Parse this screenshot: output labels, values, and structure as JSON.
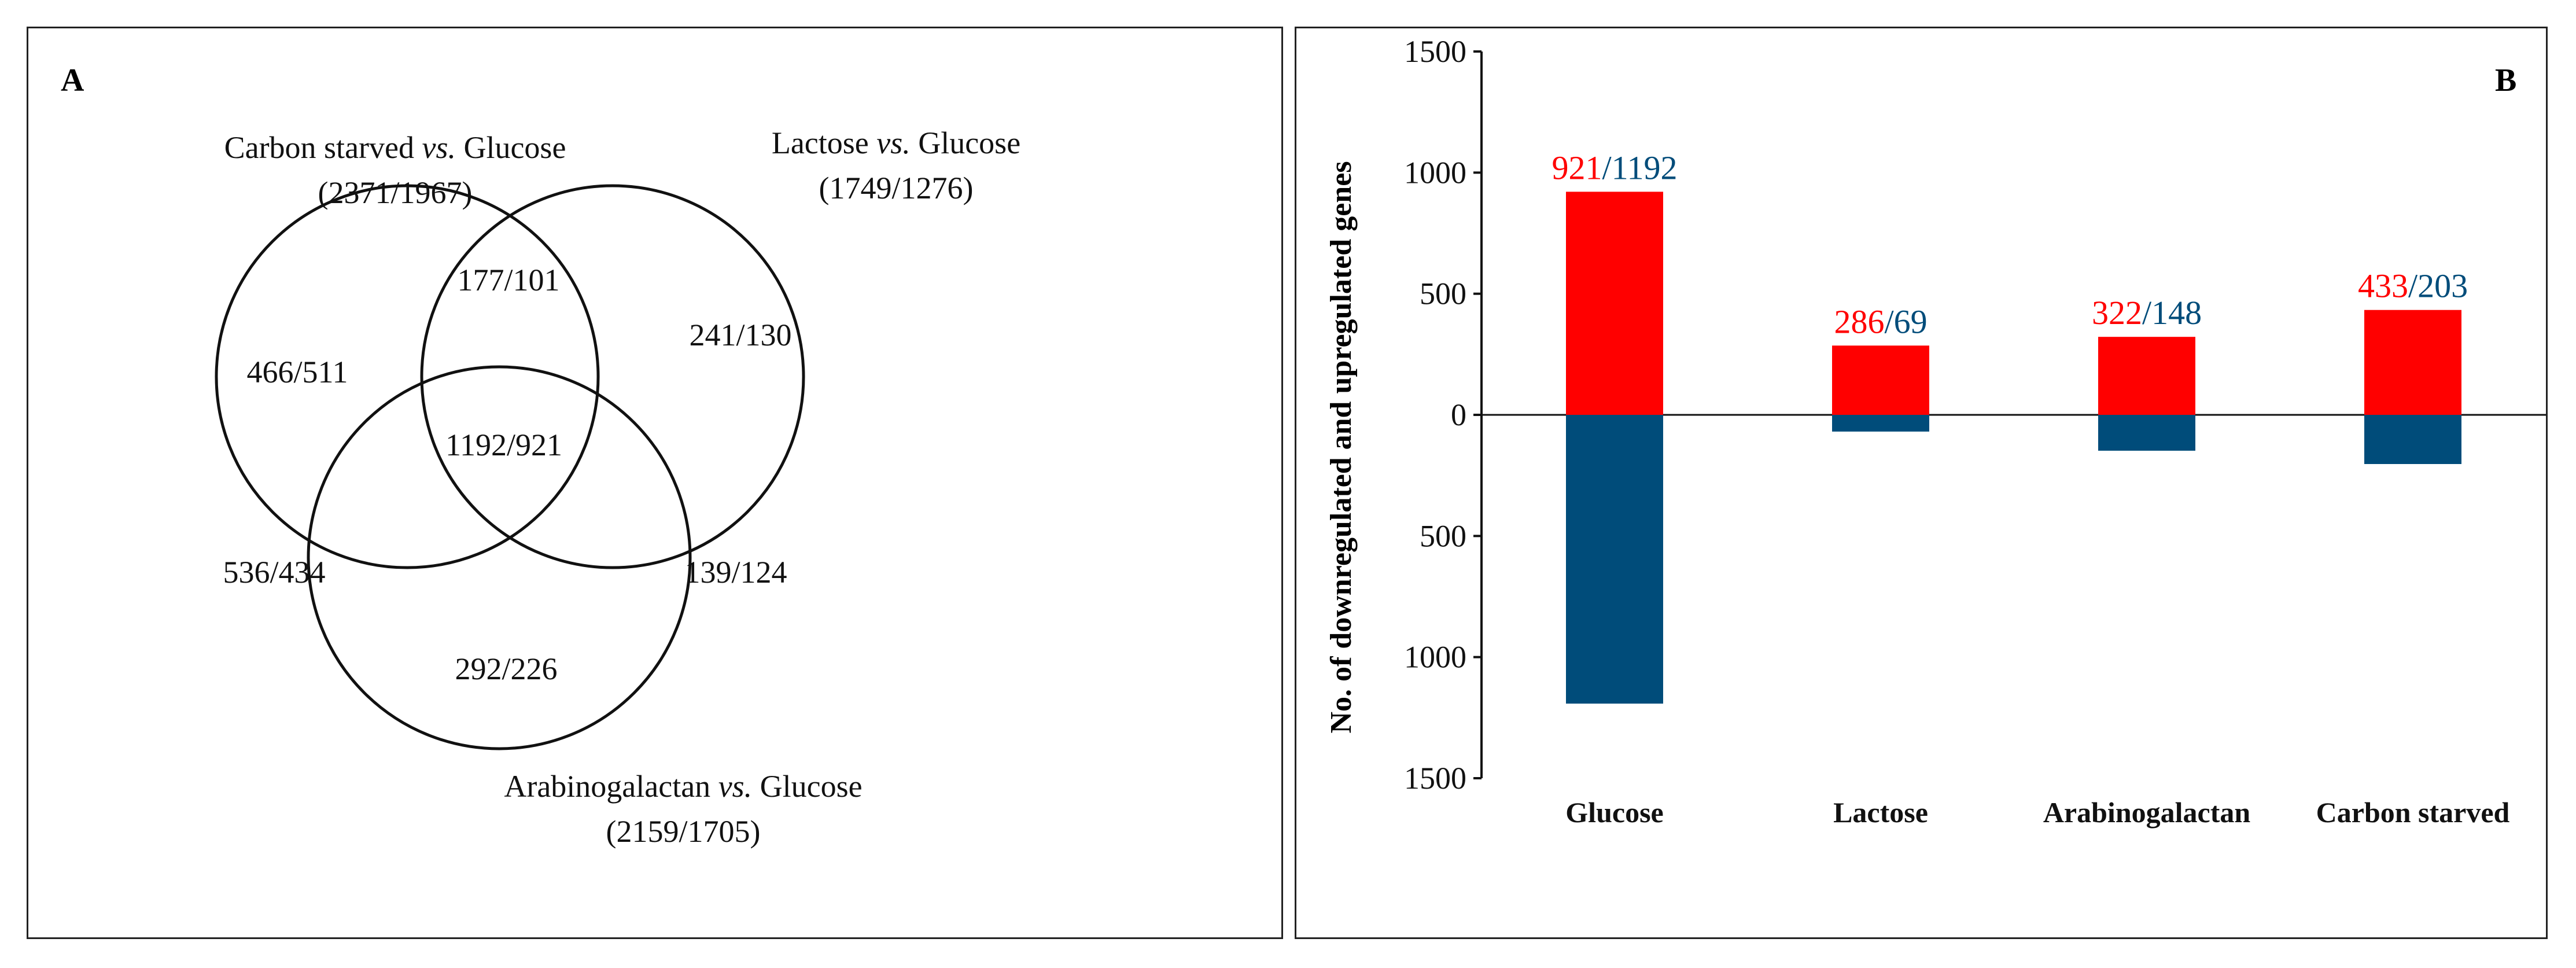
{
  "venn": {
    "panel_label": "A",
    "sets": [
      {
        "name_prefix": "Carbon starved ",
        "name_vs": "vs.",
        "name_suffix": " Glucose",
        "counts": "(2371/1967)"
      },
      {
        "name_prefix": "Lactose ",
        "name_vs": "vs.",
        "name_suffix": " Glucose",
        "counts": "(1749/1276)"
      },
      {
        "name_prefix": "Arabinogalactan ",
        "name_vs": "vs.",
        "name_suffix": " Glucose",
        "counts": "(2159/1705)"
      }
    ],
    "regions": {
      "carbon_only": "466/511",
      "lactose_only": "241/130",
      "arabinogalactan_only": "292/226",
      "carbon_lactose": "177/101",
      "carbon_arabinogalactan": "536/434",
      "lactose_arabinogalactan": "139/124",
      "all_three": "1192/921"
    }
  },
  "chart_data": {
    "type": "bar",
    "panel_label": "B",
    "ylabel": "No. of downregulated and upregulated genes",
    "categories": [
      "Glucose",
      "Lactose",
      "Arabinogalactan",
      "Carbon starved"
    ],
    "series": [
      {
        "values": [
          921,
          286,
          322,
          433
        ],
        "color": "#ff0000",
        "direction": "up"
      },
      {
        "values": [
          1192,
          69,
          148,
          203
        ],
        "color": "#004c7a",
        "direction": "down"
      }
    ],
    "bar_labels": [
      {
        "up": "921",
        "sep": "/",
        "down": "1192"
      },
      {
        "up": "286",
        "sep": "/",
        "down": "69"
      },
      {
        "up": "322",
        "sep": "/",
        "down": "148"
      },
      {
        "up": "433",
        "sep": "/",
        "down": "203"
      }
    ],
    "yticks": [
      1500,
      1000,
      500,
      0,
      500,
      1000,
      1500
    ],
    "ylim": [
      -1500,
      1500
    ],
    "grid": false
  }
}
